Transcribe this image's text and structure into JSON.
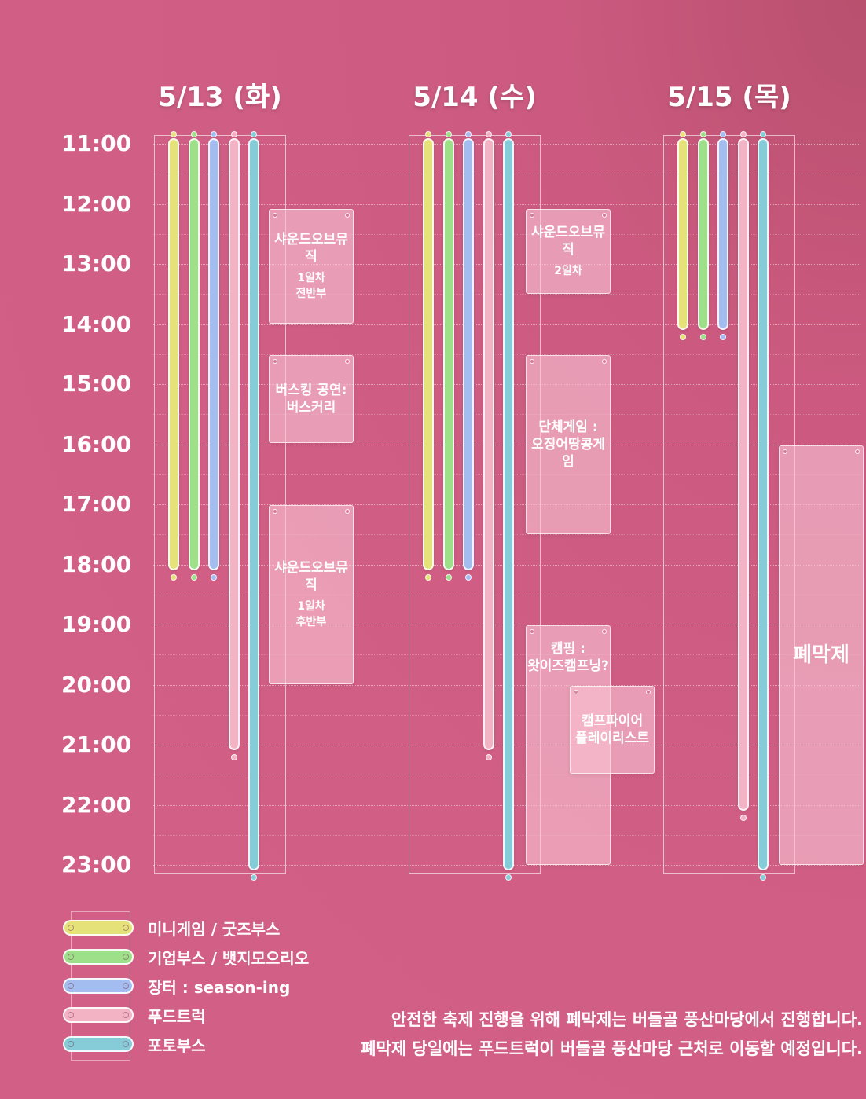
{
  "days": [
    {
      "label": "5/13 (화)"
    },
    {
      "label": "5/14 (수)"
    },
    {
      "label": "5/15 (목)"
    }
  ],
  "times": [
    "11:00",
    "12:00",
    "13:00",
    "14:00",
    "15:00",
    "16:00",
    "17:00",
    "18:00",
    "19:00",
    "20:00",
    "21:00",
    "22:00",
    "23:00"
  ],
  "categories": [
    {
      "key": "mini",
      "label": "미니게임 / 굿즈부스",
      "color": "#e6e27a"
    },
    {
      "key": "corp",
      "label": "기업부스 / 뱃지모으리오",
      "color": "#9ee08a"
    },
    {
      "key": "market",
      "label": "장터 : season-ing",
      "color": "#a3bdf0"
    },
    {
      "key": "food",
      "label": "푸드트럭",
      "color": "#f3b3c5"
    },
    {
      "key": "photo",
      "label": "포토부스",
      "color": "#86cbd8"
    }
  ],
  "schedule": [
    {
      "day": 0,
      "bars": [
        {
          "cat": "mini",
          "start": 11,
          "end": 18
        },
        {
          "cat": "corp",
          "start": 11,
          "end": 18
        },
        {
          "cat": "market",
          "start": 11,
          "end": 18
        },
        {
          "cat": "food",
          "start": 11,
          "end": 21
        },
        {
          "cat": "photo",
          "start": 11,
          "end": 23
        }
      ]
    },
    {
      "day": 1,
      "bars": [
        {
          "cat": "mini",
          "start": 11,
          "end": 18
        },
        {
          "cat": "corp",
          "start": 11,
          "end": 18
        },
        {
          "cat": "market",
          "start": 11,
          "end": 18
        },
        {
          "cat": "food",
          "start": 11,
          "end": 21
        },
        {
          "cat": "photo",
          "start": 11,
          "end": 23
        }
      ]
    },
    {
      "day": 2,
      "bars": [
        {
          "cat": "mini",
          "start": 11,
          "end": 14
        },
        {
          "cat": "corp",
          "start": 11,
          "end": 14
        },
        {
          "cat": "market",
          "start": 11,
          "end": 14
        },
        {
          "cat": "food",
          "start": 11,
          "end": 22
        },
        {
          "cat": "photo",
          "start": 11,
          "end": 23
        }
      ]
    }
  ],
  "events": [
    {
      "id": "d1-sound1",
      "title": "샤운드오브뮤직",
      "sub": "1일차\n전반부"
    },
    {
      "id": "d1-busking",
      "title": "버스킹 공연:\n버스커리",
      "sub": ""
    },
    {
      "id": "d1-sound2",
      "title": "샤운드오브뮤직",
      "sub": "1일차\n후반부"
    },
    {
      "id": "d2-sound",
      "title": "샤운드오브뮤직",
      "sub": "2일차"
    },
    {
      "id": "d2-group",
      "title": "단체게임 :\n오징어땅콩게임",
      "sub": ""
    },
    {
      "id": "d2-camp",
      "title": "캠핑 :\n왓이즈캠프닝?",
      "sub": ""
    },
    {
      "id": "d2-fire",
      "title": "캠프파이어\n플레이리스트",
      "sub": ""
    },
    {
      "id": "d3-closing",
      "title": "폐막제",
      "sub": ""
    }
  ],
  "notices": [
    "안전한 축제 진행을 위해 폐막제는 버들골 풍산마당에서 진행합니다.",
    "폐막제 당일에는 푸드트럭이 버들골 풍산마당 근처로 이동할 예정입니다."
  ]
}
